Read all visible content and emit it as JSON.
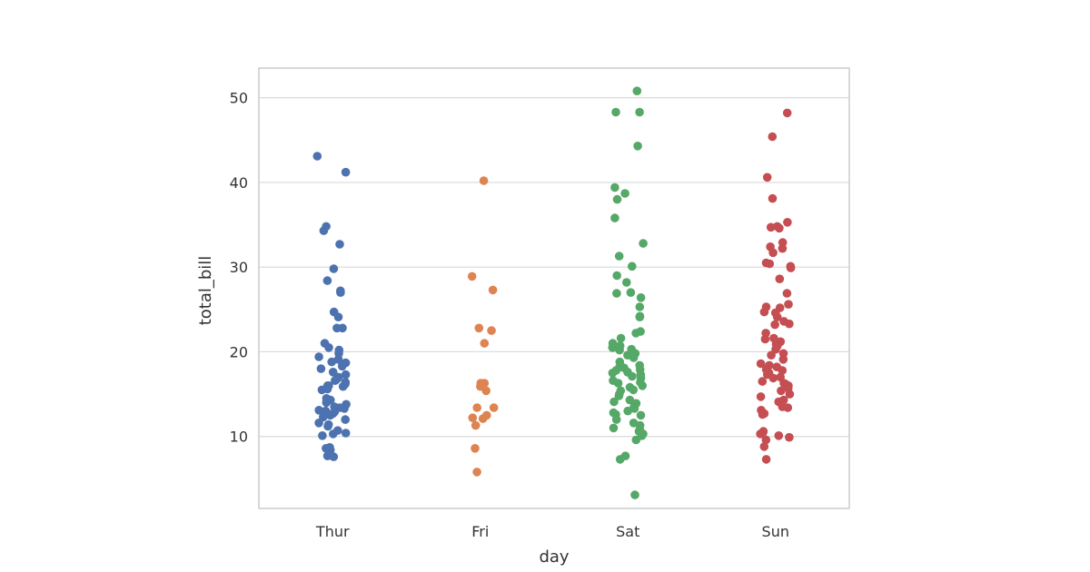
{
  "chart_data": {
    "type": "scatter",
    "style": "strip",
    "xlabel": "day",
    "ylabel": "total_bill",
    "categories": [
      "Thur",
      "Fri",
      "Sat",
      "Sun"
    ],
    "ylim": [
      1.5,
      53.5
    ],
    "yticks": [
      10,
      20,
      30,
      40,
      50
    ],
    "grid": true,
    "colors": {
      "Thur": "#4c72b0",
      "Fri": "#dd8452",
      "Sat": "#55a868",
      "Sun": "#c44e52",
      "grid": "#d9d9d9",
      "spine": "#cccccc",
      "text": "#333333"
    },
    "series": [
      {
        "category": "Thur",
        "values": [
          43.1,
          41.2,
          34.8,
          34.3,
          32.7,
          29.8,
          28.4,
          27.2,
          27.0,
          24.7,
          24.1,
          22.8,
          22.8,
          21.0,
          20.5,
          20.2,
          19.8,
          19.4,
          19.1,
          18.8,
          18.7,
          18.3,
          18.0,
          17.6,
          17.3,
          17.0,
          16.8,
          16.6,
          16.4,
          16.2,
          16.0,
          16.0,
          15.9,
          15.6,
          15.5,
          14.5,
          14.3,
          14.0,
          13.8,
          13.5,
          13.4,
          13.3,
          13.1,
          13.0,
          12.9,
          12.7,
          12.5,
          12.3,
          12.0,
          11.6,
          11.4,
          11.2,
          10.7,
          10.4,
          10.3,
          10.1,
          8.7,
          8.6,
          8.5,
          8.4,
          7.7,
          7.6
        ]
      },
      {
        "category": "Fri",
        "values": [
          40.2,
          28.9,
          27.3,
          22.8,
          22.5,
          21.0,
          16.3,
          16.3,
          15.9,
          15.4,
          13.4,
          13.4,
          12.5,
          12.2,
          12.1,
          11.3,
          8.6,
          5.8
        ]
      },
      {
        "category": "Sat",
        "values": [
          50.8,
          48.3,
          48.3,
          44.3,
          39.4,
          38.7,
          38.0,
          35.8,
          32.8,
          31.3,
          30.1,
          29.0,
          28.2,
          27.0,
          26.9,
          26.4,
          25.3,
          24.2,
          24.1,
          22.4,
          22.2,
          21.6,
          21.0,
          20.7,
          20.6,
          20.5,
          20.3,
          20.2,
          19.8,
          19.6,
          19.3,
          18.8,
          18.4,
          18.2,
          18.1,
          17.9,
          17.8,
          17.6,
          17.5,
          17.3,
          17.1,
          16.9,
          16.6,
          16.4,
          16.3,
          16.0,
          15.8,
          15.5,
          15.4,
          15.0,
          14.8,
          14.3,
          14.1,
          13.9,
          13.5,
          13.3,
          13.0,
          12.8,
          12.6,
          12.5,
          12.0,
          11.6,
          11.3,
          11.0,
          10.8,
          10.6,
          10.3,
          10.1,
          9.6,
          7.7,
          7.3,
          3.1
        ]
      },
      {
        "category": "Sun",
        "values": [
          48.2,
          45.4,
          40.6,
          38.1,
          35.3,
          34.8,
          34.7,
          34.6,
          32.9,
          32.4,
          32.2,
          31.7,
          30.5,
          30.4,
          30.1,
          29.9,
          28.6,
          26.9,
          25.6,
          25.3,
          25.2,
          24.7,
          24.6,
          24.1,
          23.6,
          23.3,
          23.2,
          22.2,
          21.6,
          21.5,
          21.2,
          20.9,
          20.7,
          20.3,
          19.8,
          19.6,
          19.1,
          18.6,
          18.4,
          18.2,
          17.9,
          17.8,
          17.5,
          17.3,
          17.0,
          16.9,
          16.5,
          16.3,
          16.2,
          16.0,
          15.7,
          15.4,
          15.0,
          14.7,
          14.3,
          14.1,
          13.5,
          13.4,
          13.1,
          12.7,
          12.6,
          10.6,
          10.4,
          10.3,
          10.1,
          9.9,
          9.6,
          8.8,
          7.3
        ]
      }
    ]
  }
}
